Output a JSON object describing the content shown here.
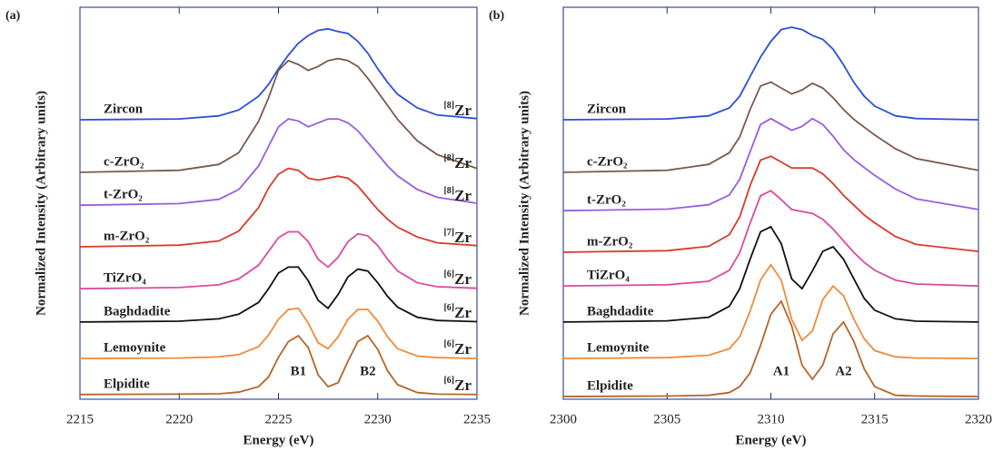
{
  "chart_data": [
    {
      "type": "line",
      "panel_label": "(a)",
      "xlabel": "Energy (eV)",
      "ylabel": "Normalized Intensity (Arbitrary units)",
      "element": "Zr",
      "xlim": [
        2215,
        2235
      ],
      "xticks": [
        2215,
        2220,
        2225,
        2230,
        2235
      ],
      "ylim": [
        0,
        10
      ],
      "annotations": [
        "B1",
        "B2"
      ],
      "x": [
        2215,
        2220,
        2222,
        2223,
        2224,
        2224.5,
        2225,
        2225.5,
        2226,
        2226.5,
        2227,
        2227.5,
        2228,
        2228.5,
        2229,
        2229.5,
        2230,
        2230.5,
        2231,
        2232,
        2233,
        2235
      ],
      "series": [
        {
          "name": "Zircon",
          "site": "[8]",
          "color": "#2b4fd8",
          "values": [
            7.13,
            7.15,
            7.23,
            7.38,
            7.73,
            8.03,
            8.43,
            8.78,
            9.08,
            9.28,
            9.41,
            9.45,
            9.38,
            9.33,
            9.13,
            8.83,
            8.43,
            8.08,
            7.78,
            7.43,
            7.25,
            7.16
          ]
        },
        {
          "name": "c-ZrO₂",
          "site": "[8]",
          "color": "#7a5a4a",
          "values": [
            5.79,
            5.84,
            5.99,
            6.29,
            7.09,
            7.69,
            8.39,
            8.64,
            8.54,
            8.39,
            8.49,
            8.64,
            8.69,
            8.64,
            8.49,
            8.19,
            7.84,
            7.49,
            7.14,
            6.59,
            6.24,
            5.89
          ]
        },
        {
          "name": "t-ZrO₂",
          "site": "[8]",
          "color": "#9a5ce0",
          "values": [
            4.95,
            4.99,
            5.1,
            5.35,
            5.95,
            6.45,
            6.95,
            7.15,
            7.1,
            6.95,
            7.05,
            7.15,
            7.15,
            7.05,
            6.85,
            6.55,
            6.25,
            5.95,
            5.7,
            5.35,
            5.15,
            5.0
          ]
        },
        {
          "name": "m-ZrO₂",
          "site": "[7]",
          "color": "#d93a2a",
          "values": [
            3.89,
            3.93,
            4.04,
            4.29,
            4.89,
            5.39,
            5.74,
            5.89,
            5.84,
            5.64,
            5.59,
            5.64,
            5.69,
            5.64,
            5.44,
            5.14,
            4.84,
            4.59,
            4.39,
            4.14,
            3.99,
            3.92
          ]
        },
        {
          "name": "TiZrO₄",
          "site": "[6]",
          "color": "#d94aa0",
          "values": [
            2.82,
            2.85,
            2.92,
            3.07,
            3.42,
            3.77,
            4.12,
            4.27,
            4.27,
            4.02,
            3.57,
            3.37,
            3.62,
            4.02,
            4.22,
            4.17,
            3.92,
            3.57,
            3.27,
            2.97,
            2.87,
            2.83
          ]
        },
        {
          "name": "Baghdadite",
          "site": "[6]",
          "color": "#111111",
          "values": [
            1.97,
            1.99,
            2.05,
            2.17,
            2.47,
            2.82,
            3.22,
            3.37,
            3.37,
            3.02,
            2.52,
            2.32,
            2.67,
            3.12,
            3.32,
            3.27,
            2.97,
            2.62,
            2.35,
            2.09,
            2.01,
            1.98
          ]
        },
        {
          "name": "Lemoynite",
          "site": "[6]",
          "color": "#f08a3a",
          "values": [
            1.04,
            1.05,
            1.08,
            1.14,
            1.34,
            1.64,
            2.04,
            2.29,
            2.32,
            1.94,
            1.44,
            1.29,
            1.59,
            2.04,
            2.29,
            2.29,
            1.99,
            1.59,
            1.29,
            1.1,
            1.06,
            1.04
          ]
        },
        {
          "name": "Elpidite",
          "site": "[6]",
          "color": "#b5652a",
          "values": [
            0.12,
            0.13,
            0.14,
            0.18,
            0.32,
            0.57,
            1.07,
            1.47,
            1.62,
            1.32,
            0.62,
            0.32,
            0.42,
            0.97,
            1.47,
            1.62,
            1.27,
            0.72,
            0.37,
            0.17,
            0.13,
            0.12
          ]
        }
      ]
    },
    {
      "type": "line",
      "panel_label": "(b)",
      "xlabel": "Energy (eV)",
      "ylabel": "Normalized Intensity (Arbitrary units)",
      "xlim": [
        2300,
        2320
      ],
      "xticks": [
        2300,
        2305,
        2310,
        2315,
        2320
      ],
      "ylim": [
        0,
        10
      ],
      "annotations": [
        "A1",
        "A2"
      ],
      "x": [
        2300,
        2305,
        2307,
        2308,
        2308.5,
        2309,
        2309.5,
        2310,
        2310.5,
        2311,
        2311.5,
        2312,
        2312.5,
        2313,
        2313.5,
        2314,
        2314.5,
        2315,
        2316,
        2317,
        2320
      ],
      "series": [
        {
          "name": "Zircon",
          "color": "#2b4fd8",
          "values": [
            7.13,
            7.15,
            7.23,
            7.43,
            7.73,
            8.23,
            8.73,
            9.13,
            9.43,
            9.49,
            9.43,
            9.28,
            9.18,
            8.93,
            8.53,
            8.08,
            7.73,
            7.48,
            7.23,
            7.16,
            7.13
          ]
        },
        {
          "name": "c-ZrO₂",
          "color": "#7a5a4a",
          "values": [
            5.79,
            5.84,
            5.99,
            6.29,
            6.69,
            7.39,
            7.99,
            8.09,
            7.94,
            7.79,
            7.89,
            8.06,
            7.94,
            7.69,
            7.39,
            7.14,
            6.94,
            6.74,
            6.39,
            6.14,
            5.84
          ]
        },
        {
          "name": "t-ZrO₂",
          "color": "#9a5ce0",
          "values": [
            4.81,
            4.85,
            4.96,
            5.21,
            5.61,
            6.31,
            7.01,
            7.16,
            7.01,
            6.86,
            6.96,
            7.16,
            7.01,
            6.71,
            6.36,
            6.11,
            5.91,
            5.71,
            5.36,
            5.11,
            4.84
          ]
        },
        {
          "name": "m-ZrO₂",
          "color": "#d93a2a",
          "values": [
            3.75,
            3.79,
            3.9,
            4.2,
            4.65,
            5.45,
            6.1,
            6.2,
            6.05,
            5.9,
            5.9,
            5.9,
            5.75,
            5.5,
            5.2,
            4.95,
            4.7,
            4.5,
            4.15,
            3.95,
            3.77
          ]
        },
        {
          "name": "TiZrO₄",
          "color": "#d94aa0",
          "values": [
            2.89,
            2.92,
            3.01,
            3.29,
            3.74,
            4.49,
            5.19,
            5.32,
            5.09,
            4.84,
            4.79,
            4.74,
            4.59,
            4.34,
            4.04,
            3.74,
            3.49,
            3.29,
            3.04,
            2.94,
            2.89
          ]
        },
        {
          "name": "Baghdadite",
          "color": "#111111",
          "values": [
            1.97,
            2.0,
            2.09,
            2.37,
            2.82,
            3.57,
            4.27,
            4.4,
            3.97,
            3.07,
            2.82,
            3.27,
            3.77,
            3.89,
            3.57,
            3.07,
            2.57,
            2.27,
            2.05,
            1.99,
            1.97
          ]
        },
        {
          "name": "Lemoynite",
          "color": "#f08a3a",
          "values": [
            1.04,
            1.06,
            1.12,
            1.29,
            1.59,
            2.24,
            3.04,
            3.43,
            3.04,
            2.04,
            1.5,
            1.74,
            2.54,
            2.89,
            2.64,
            2.04,
            1.54,
            1.24,
            1.08,
            1.05,
            1.04
          ]
        },
        {
          "name": "Elpidite",
          "color": "#b5652a",
          "values": [
            0.07,
            0.08,
            0.1,
            0.17,
            0.32,
            0.67,
            1.37,
            2.17,
            2.5,
            1.87,
            0.87,
            0.51,
            0.87,
            1.67,
            1.97,
            1.47,
            0.77,
            0.32,
            0.1,
            0.08,
            0.07
          ]
        }
      ]
    }
  ]
}
